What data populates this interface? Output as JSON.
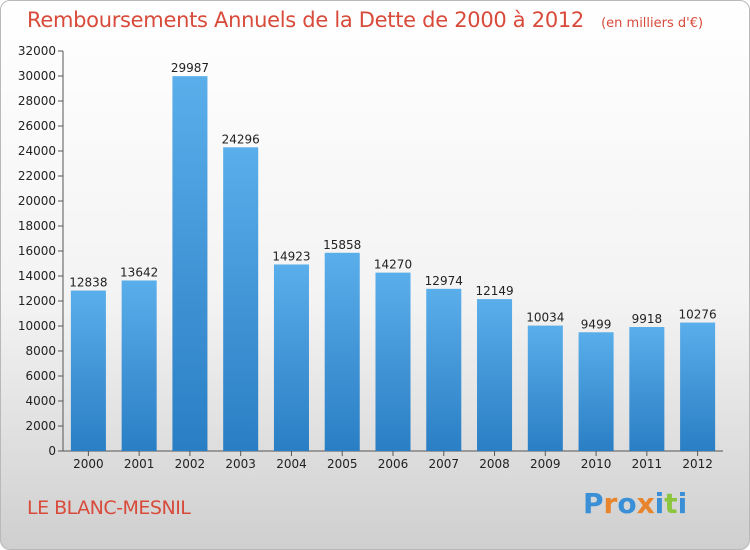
{
  "header": {
    "title": "Remboursements Annuels de la Dette de 2000 à 2012",
    "subtitle": "(en milliers d'€)"
  },
  "footer": {
    "commune": "LE BLANC-MESNIL",
    "brand": "Proxiti",
    "brand_letters": [
      {
        "ch": "P",
        "color": "#3a8fd6"
      },
      {
        "ch": "r",
        "color": "#e8842c"
      },
      {
        "ch": "o",
        "color": "#3a8fd6"
      },
      {
        "ch": "x",
        "color": "#e8842c"
      },
      {
        "ch": "i",
        "color": "#3a8fd6"
      },
      {
        "ch": "t",
        "color": "#8cc63e"
      },
      {
        "ch": "i",
        "color": "#3a8fd6"
      }
    ]
  },
  "chart_data": {
    "type": "bar",
    "categories": [
      "2000",
      "2001",
      "2002",
      "2003",
      "2004",
      "2005",
      "2006",
      "2007",
      "2008",
      "2009",
      "2010",
      "2011",
      "2012"
    ],
    "values": [
      12838,
      13642,
      29987,
      24296,
      14923,
      15858,
      14270,
      12974,
      12149,
      10034,
      9499,
      9918,
      10276
    ],
    "ylim": [
      0,
      32000
    ],
    "yticks": [
      0,
      2000,
      4000,
      6000,
      8000,
      10000,
      12000,
      14000,
      16000,
      18000,
      20000,
      22000,
      24000,
      26000,
      28000,
      30000,
      32000
    ],
    "xlabel": "",
    "ylabel": "",
    "grid": false,
    "bar_color_top": "#5aaeea",
    "bar_color_bottom": "#2a7ec4"
  }
}
